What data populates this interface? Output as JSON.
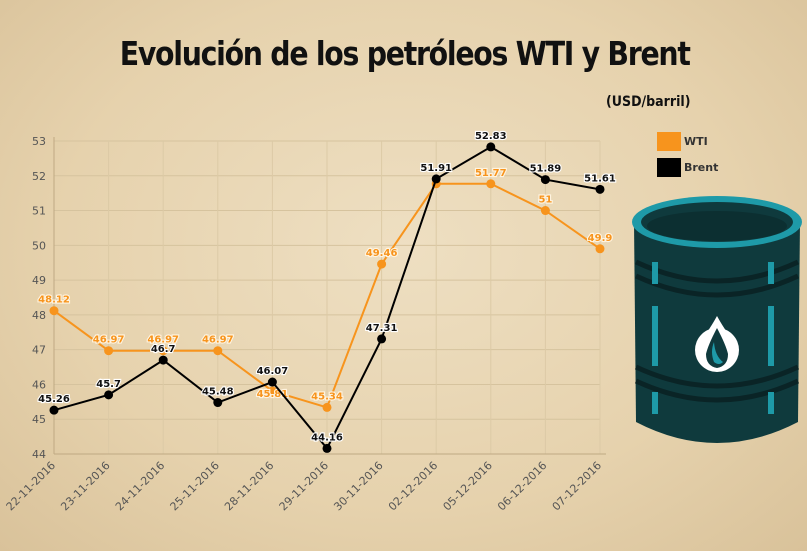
{
  "title": "Evolución de los petróleos WTI y Brent",
  "subtitle": "(USD/barril)",
  "colors": {
    "wti": "#f7941d",
    "brent": "#000000",
    "barrel": "#0f3a3d",
    "barrel_rim": "#1e9aa8"
  },
  "chart_data": {
    "type": "line",
    "x": [
      "22-11-2016",
      "23-11-2016",
      "24-11-2016",
      "25-11-2016",
      "28-11-2016",
      "29-11-2016",
      "30-11-2016",
      "02-12-2016",
      "05-12-2016",
      "06-12-2016",
      "07-12-2016"
    ],
    "series": [
      {
        "name": "WTI",
        "color": "#f7941d",
        "values": [
          48.12,
          46.97,
          46.97,
          46.97,
          45.81,
          45.34,
          49.46,
          51.77,
          51.77,
          51,
          49.9
        ],
        "labels": [
          "48.12",
          "46.97",
          "46.97",
          "46.97",
          "45.81",
          "45.34",
          "49.46",
          "",
          "51.77",
          "51",
          "49.9"
        ]
      },
      {
        "name": "Brent",
        "color": "#000000",
        "values": [
          45.26,
          45.7,
          46.7,
          45.48,
          46.07,
          44.16,
          47.31,
          51.91,
          52.83,
          51.89,
          51.61
        ],
        "labels": [
          "45.26",
          "45.7",
          "46.7",
          "45.48",
          "46.07",
          "44.16",
          "47.31",
          "51.91",
          "52.83",
          "51.89",
          "51.61"
        ]
      }
    ],
    "yticks": [
      44,
      45,
      46,
      47,
      48,
      49,
      50,
      51,
      52,
      53
    ],
    "ylim": [
      44,
      53
    ],
    "grid": true,
    "legend": "top-right",
    "title": "Evolución de los petróleos WTI y Brent",
    "ylabel": "(USD/barril)"
  }
}
